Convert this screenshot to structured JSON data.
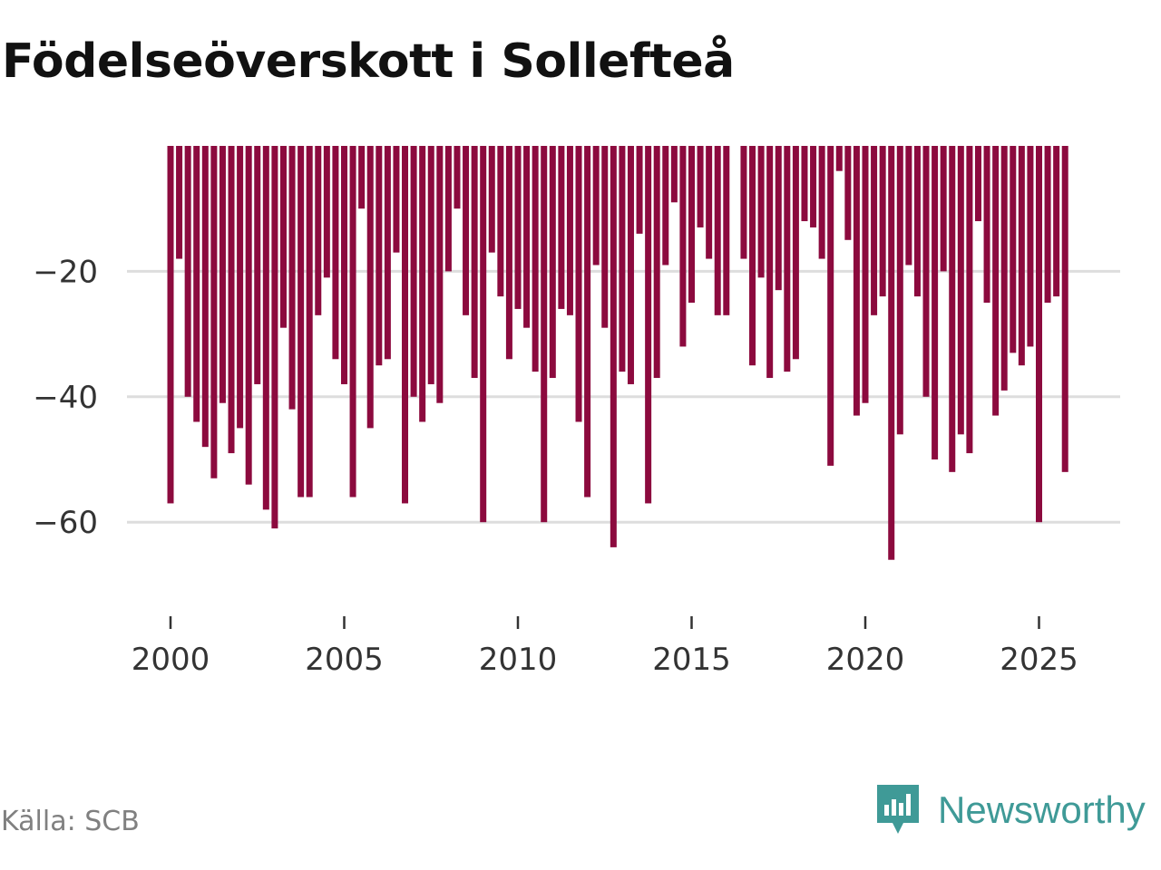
{
  "title": "Födelseöverskott i Sollefteå",
  "source": "Källa: SCB",
  "brand": {
    "name": "Newsworthy",
    "icon": "newsworthy-logo-icon",
    "color": "#3f9a97"
  },
  "colors": {
    "bar": "#8c0a3e",
    "grid": "#dddddd",
    "axis_text": "#333333"
  },
  "chart_data": {
    "type": "bar",
    "title": "Födelseöverskott i Sollefteå",
    "xlabel": "",
    "ylabel": "",
    "frequency": "quarterly",
    "x_start": 2000.0,
    "x_step": 0.25,
    "x_ticks": [
      2000,
      2005,
      2010,
      2015,
      2020,
      2025
    ],
    "y_ticks": [
      -20,
      -40,
      -60
    ],
    "ylim": [
      -70,
      0
    ],
    "values": [
      -57,
      -18,
      -40,
      -44,
      -48,
      -53,
      -41,
      -49,
      -45,
      -54,
      -38,
      -58,
      -61,
      -29,
      -42,
      -56,
      -56,
      -27,
      -21,
      -34,
      -38,
      -56,
      -10,
      -45,
      -35,
      -34,
      -17,
      -57,
      -40,
      -44,
      -38,
      -41,
      -20,
      -10,
      -27,
      -37,
      -60,
      -17,
      -24,
      -34,
      -26,
      -29,
      -36,
      -60,
      -37,
      -26,
      -27,
      -44,
      -56,
      -19,
      -29,
      -64,
      -36,
      -38,
      -14,
      -57,
      -37,
      -19,
      -9,
      -32,
      -25,
      -13,
      -18,
      -27,
      -27,
      0,
      -18,
      -35,
      -21,
      -37,
      -23,
      -36,
      -34,
      -12,
      -13,
      -18,
      -51,
      -4,
      -15,
      -43,
      -41,
      -27,
      -24,
      -66,
      -46,
      -19,
      -24,
      -40,
      -50,
      -20,
      -52,
      -46,
      -49,
      -12,
      -25,
      -43,
      -39,
      -33,
      -35,
      -32,
      -60,
      -25,
      -24,
      -52
    ]
  }
}
